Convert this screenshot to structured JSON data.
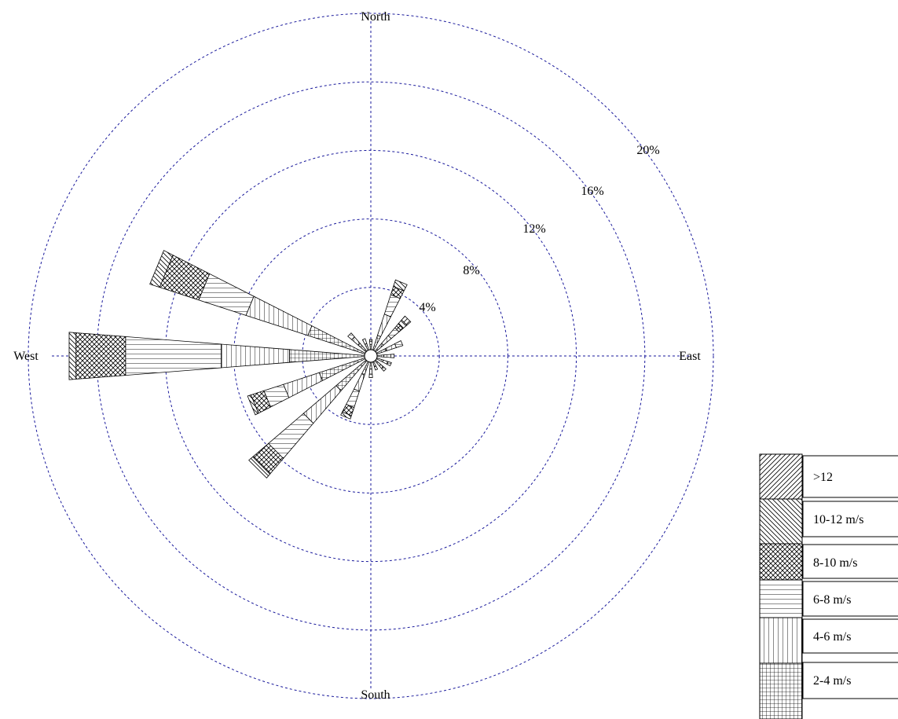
{
  "chart_data": {
    "type": "wind-rose",
    "directions": [
      "N",
      "NNE",
      "NE",
      "ENE",
      "E",
      "ESE",
      "SE",
      "SSE",
      "S",
      "SSW",
      "SW",
      "WSW",
      "W",
      "WNW",
      "NW",
      "NNW"
    ],
    "compass_labels": {
      "north": "North",
      "east": "East",
      "south": "South",
      "west": "West"
    },
    "ring_labels": [
      "4%",
      "8%",
      "12%",
      "16%",
      "20%"
    ],
    "rings": [
      4,
      8,
      12,
      16,
      20
    ],
    "speed_bins": [
      {
        "name": "2-4 m/s",
        "pattern": "grid"
      },
      {
        "name": "4-6 m/s",
        "pattern": "vertical"
      },
      {
        "name": "6-8 m/s",
        "pattern": "horizontal"
      },
      {
        "name": "8-10 m/s",
        "pattern": "crosshatch"
      },
      {
        "name": "10-12 m/s",
        "pattern": "backslash"
      },
      {
        "name": ">12",
        "pattern": "slash"
      }
    ],
    "legend_order": [
      ">12",
      "10-12 m/s",
      "8-10 m/s",
      "6-8 m/s",
      "4-6 m/s",
      "2-4 m/s"
    ],
    "calm_circle": true,
    "values_percent": {
      "N": [
        0.3,
        0.2,
        0.1,
        0,
        0,
        0
      ],
      "NNE": [
        0.9,
        1.3,
        1.2,
        0.5,
        0.4,
        0
      ],
      "NE": [
        0.6,
        0.6,
        0.6,
        0.3,
        0.3,
        0.3
      ],
      "ENE": [
        0.6,
        0.6,
        0.4,
        0,
        0,
        0
      ],
      "E": [
        0.4,
        0.4,
        0.2,
        0,
        0,
        0
      ],
      "ESE": [
        0.4,
        0.3,
        0.2,
        0,
        0,
        0
      ],
      "SE": [
        0.4,
        0.2,
        0.2,
        0,
        0,
        0
      ],
      "SSE": [
        0.3,
        0.2,
        0,
        0,
        0,
        0
      ],
      "S": [
        0.4,
        0.3,
        0.2,
        0,
        0,
        0
      ],
      "SSW": [
        0.8,
        1.0,
        1.0,
        0.5,
        0.2,
        0
      ],
      "SW": [
        2.3,
        2.5,
        2.7,
        1.2,
        0.3,
        0
      ],
      "WSW": [
        2.8,
        2.2,
        1.2,
        0.8,
        0.2,
        0
      ],
      "W": [
        4.4,
        4.0,
        5.6,
        2.9,
        0.4,
        0
      ],
      "WNW": [
        3.5,
        3.8,
        2.9,
        2.4,
        0.6,
        0
      ],
      "NW": [
        0.6,
        0.5,
        0.3,
        0,
        0,
        0
      ],
      "NNW": [
        0.4,
        0.3,
        0,
        0,
        0,
        0
      ]
    }
  }
}
